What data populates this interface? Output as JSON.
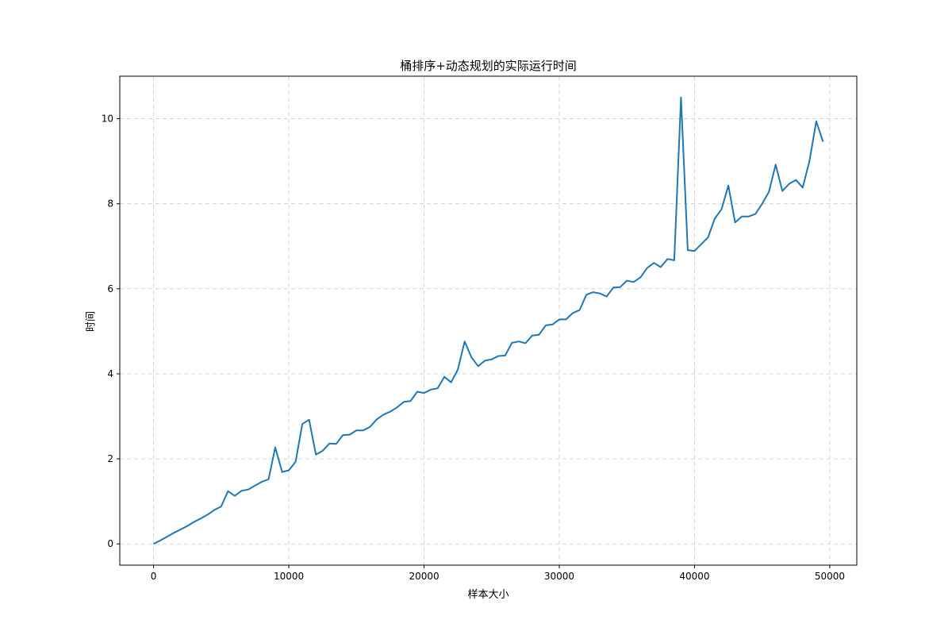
{
  "chart_data": {
    "type": "line",
    "title": "桶排序+动态规划的实际运行时间",
    "xlabel": "样本大小",
    "ylabel": "时间",
    "xlim": [
      -2500,
      52000
    ],
    "ylim": [
      -0.5,
      11.0
    ],
    "xticks": [
      0,
      10000,
      20000,
      30000,
      40000,
      50000
    ],
    "yticks": [
      0,
      2,
      4,
      6,
      8,
      10
    ],
    "grid": true,
    "line_color": "#1f77b4",
    "series": [
      {
        "x": [
          0,
          500,
          1000,
          1500,
          2000,
          2500,
          3000,
          3500,
          4000,
          4500,
          5000,
          5500,
          6000,
          6500,
          7000,
          7500,
          8000,
          8500,
          9000,
          9500,
          10000,
          10500,
          11000,
          11500,
          12000,
          12500,
          13000,
          13500,
          14000,
          14500,
          15000,
          15500,
          16000,
          16500,
          17000,
          17500,
          18000,
          18500,
          19000,
          19500,
          20000,
          20500,
          21000,
          21500,
          22000,
          22500,
          23000,
          23500,
          24000,
          24500,
          25000,
          25500,
          26000,
          26500,
          27000,
          27500,
          28000,
          28500,
          29000,
          29500,
          30000,
          30500,
          31000,
          31500,
          32000,
          32500,
          33000,
          33500,
          34000,
          34500,
          35000,
          35500,
          36000,
          36500,
          37000,
          37500,
          38000,
          38500,
          39000,
          39500,
          40000,
          40500,
          41000,
          41500,
          42000,
          42500,
          43000,
          43500,
          44000,
          44500,
          45000,
          45500,
          46000,
          46500,
          47000,
          47500,
          48000,
          48500,
          49000,
          49500
        ],
        "values": [
          0.0,
          0.08,
          0.17,
          0.26,
          0.34,
          0.42,
          0.52,
          0.6,
          0.69,
          0.8,
          0.88,
          1.24,
          1.13,
          1.25,
          1.28,
          1.37,
          1.46,
          1.52,
          2.27,
          1.69,
          1.73,
          1.93,
          2.82,
          2.92,
          2.1,
          2.19,
          2.36,
          2.35,
          2.56,
          2.57,
          2.67,
          2.67,
          2.75,
          2.93,
          3.04,
          3.11,
          3.21,
          3.34,
          3.36,
          3.58,
          3.55,
          3.63,
          3.66,
          3.93,
          3.8,
          4.1,
          4.76,
          4.39,
          4.18,
          4.31,
          4.34,
          4.42,
          4.43,
          4.73,
          4.76,
          4.72,
          4.9,
          4.92,
          5.14,
          5.16,
          5.28,
          5.28,
          5.43,
          5.5,
          5.86,
          5.92,
          5.89,
          5.82,
          6.03,
          6.04,
          6.19,
          6.16,
          6.27,
          6.49,
          6.61,
          6.51,
          6.7,
          6.67,
          10.5,
          6.91,
          6.89,
          7.05,
          7.21,
          7.65,
          7.87,
          8.43,
          7.56,
          7.7,
          7.7,
          7.76,
          8.0,
          8.28,
          8.92,
          8.3,
          8.47,
          8.56,
          8.38,
          9.0,
          9.94,
          9.46
        ]
      }
    ]
  }
}
